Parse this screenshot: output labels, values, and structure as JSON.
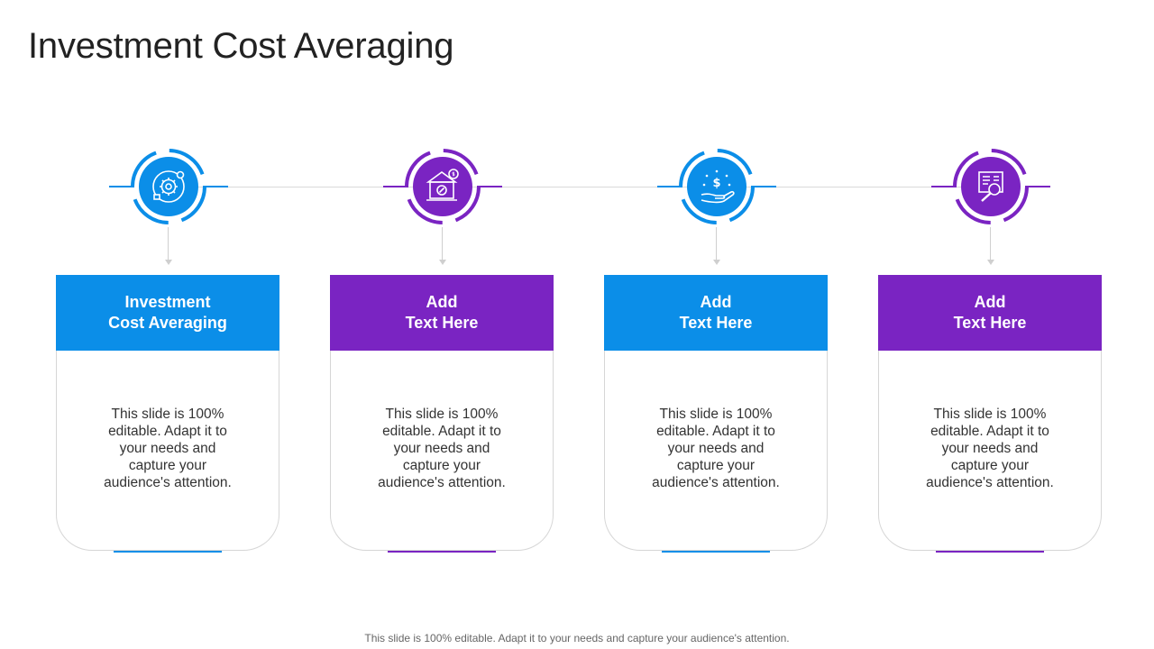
{
  "title": "Investment Cost Averaging",
  "colors": {
    "blue": "#0b8ee8",
    "purple": "#7a24c2",
    "line": "#d9d9d9"
  },
  "steps": [
    {
      "heading_lines": [
        "Investment",
        "Cost Averaging"
      ],
      "body_lines": [
        "This slide is 100%",
        "editable. Adapt it to",
        "your needs and",
        "capture your",
        "audience's attention."
      ],
      "color": "blue",
      "icon": "gear-cycle-icon"
    },
    {
      "heading_lines": [
        "Add",
        "Text Here"
      ],
      "body_lines": [
        "This slide is 100%",
        "editable. Adapt it to",
        "your needs and",
        "capture your",
        "audience's attention."
      ],
      "color": "purple",
      "icon": "bank-percent-icon"
    },
    {
      "heading_lines": [
        "Add",
        "Text Here"
      ],
      "body_lines": [
        "This slide is 100%",
        "editable. Adapt it to",
        "your needs and",
        "capture your",
        "audience's attention."
      ],
      "color": "blue",
      "icon": "hand-dollar-icon"
    },
    {
      "heading_lines": [
        "Add",
        "Text Here"
      ],
      "body_lines": [
        "This slide is 100%",
        "editable. Adapt it to",
        "your needs and",
        "capture your",
        "audience's attention."
      ],
      "color": "purple",
      "icon": "report-magnifier-icon"
    }
  ],
  "footer": "This slide is 100% editable. Adapt it to your needs and capture your audience's attention."
}
